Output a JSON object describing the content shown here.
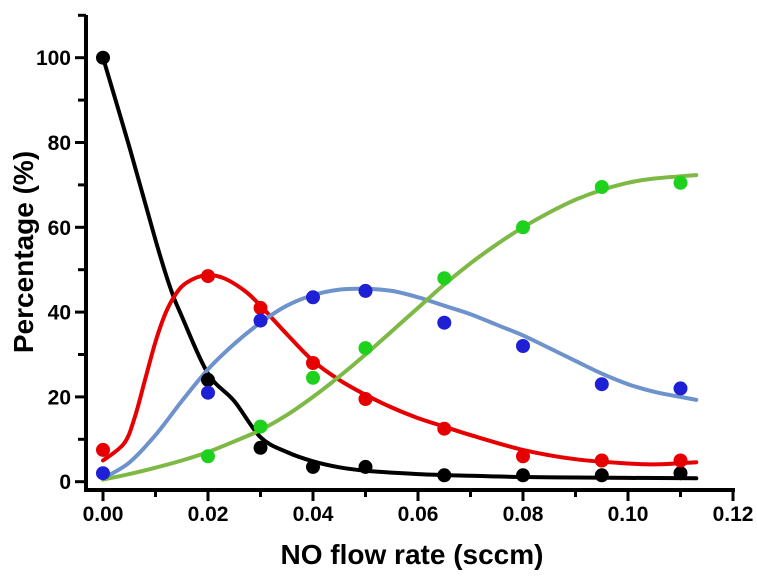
{
  "figure": {
    "background": "#ffffff",
    "axis_color": "#000000"
  },
  "chart_data": {
    "type": "scatter",
    "title": "",
    "xlabel": "NO flow rate (sccm)",
    "ylabel": "Percentage (%)",
    "xlim": [
      -0.0035,
      0.1225
    ],
    "ylim": [
      -2,
      110
    ],
    "grid": false,
    "legend_position": "none",
    "x_axis": {
      "ticks_major": [
        0,
        0.02,
        0.04,
        0.06,
        0.08,
        0.1,
        0.12
      ],
      "tick_labels": [
        "0.00",
        "0.02",
        "0.04",
        "0.06",
        "0.08",
        "0.10",
        "0.12"
      ],
      "ticks_minor": [
        0.01,
        0.03,
        0.05,
        0.07,
        0.09,
        0.11
      ]
    },
    "y_axis": {
      "ticks_major": [
        0,
        20,
        40,
        60,
        80,
        100
      ],
      "tick_labels": [
        "0",
        "20",
        "40",
        "60",
        "80",
        "100"
      ],
      "ticks_minor": [
        10,
        30,
        50,
        70,
        90,
        110
      ]
    },
    "series": [
      {
        "name": "black-series",
        "marker_color": "#000000",
        "line_color": "#000000",
        "points": [
          [
            0,
            100
          ],
          [
            0.02,
            24
          ],
          [
            0.03,
            8
          ],
          [
            0.04,
            3.5
          ],
          [
            0.05,
            3.5
          ],
          [
            0.065,
            1.5
          ],
          [
            0.08,
            1.5
          ],
          [
            0.095,
            1.5
          ],
          [
            0.11,
            2
          ]
        ],
        "fit_curve": [
          [
            0,
            100
          ],
          [
            0.005,
            79
          ],
          [
            0.01,
            57
          ],
          [
            0.0128,
            45.8
          ],
          [
            0.015,
            39
          ],
          [
            0.02,
            25.5
          ],
          [
            0.025,
            19
          ],
          [
            0.03,
            10.5
          ],
          [
            0.035,
            7
          ],
          [
            0.04,
            4.8
          ],
          [
            0.045,
            3.4
          ],
          [
            0.05,
            2.6
          ],
          [
            0.06,
            1.8
          ],
          [
            0.07,
            1.4
          ],
          [
            0.08,
            1.1
          ],
          [
            0.09,
            1.0
          ],
          [
            0.1,
            0.9
          ],
          [
            0.113,
            0.8
          ]
        ]
      },
      {
        "name": "red-series",
        "marker_color": "#e60000",
        "line_color": "#e60000",
        "points": [
          [
            0,
            7.5
          ],
          [
            0.02,
            48.5
          ],
          [
            0.03,
            41
          ],
          [
            0.04,
            28
          ],
          [
            0.05,
            19.5
          ],
          [
            0.065,
            12.5
          ],
          [
            0.08,
            6
          ],
          [
            0.095,
            5
          ],
          [
            0.11,
            5
          ]
        ],
        "fit_curve": [
          [
            0,
            5
          ],
          [
            0.004,
            9
          ],
          [
            0.006,
            15
          ],
          [
            0.008,
            24
          ],
          [
            0.01,
            33
          ],
          [
            0.012,
            40
          ],
          [
            0.014,
            44.5
          ],
          [
            0.016,
            47
          ],
          [
            0.0195,
            48.7
          ],
          [
            0.023,
            48
          ],
          [
            0.027,
            45
          ],
          [
            0.03,
            41.5
          ],
          [
            0.035,
            34.8
          ],
          [
            0.04,
            28.5
          ],
          [
            0.045,
            24
          ],
          [
            0.05,
            20.5
          ],
          [
            0.055,
            17.5
          ],
          [
            0.06,
            15
          ],
          [
            0.065,
            13
          ],
          [
            0.07,
            11
          ],
          [
            0.08,
            7.5
          ],
          [
            0.09,
            5.3
          ],
          [
            0.1,
            4.3
          ],
          [
            0.106,
            4.1
          ],
          [
            0.113,
            4.6
          ]
        ]
      },
      {
        "name": "blue-series",
        "marker_color": "#1f1fd6",
        "line_color": "#6d92cc",
        "points": [
          [
            0,
            2
          ],
          [
            0.02,
            21
          ],
          [
            0.03,
            38
          ],
          [
            0.04,
            43.5
          ],
          [
            0.05,
            45
          ],
          [
            0.065,
            37.5
          ],
          [
            0.08,
            32
          ],
          [
            0.095,
            23
          ],
          [
            0.11,
            22
          ]
        ],
        "fit_curve": [
          [
            0,
            0.8
          ],
          [
            0.005,
            4.5
          ],
          [
            0.01,
            11
          ],
          [
            0.015,
            19
          ],
          [
            0.02,
            26.5
          ],
          [
            0.025,
            32.5
          ],
          [
            0.03,
            37.5
          ],
          [
            0.035,
            41.5
          ],
          [
            0.04,
            44
          ],
          [
            0.045,
            45.3
          ],
          [
            0.05,
            45.5
          ],
          [
            0.055,
            45
          ],
          [
            0.06,
            43.5
          ],
          [
            0.065,
            41.5
          ],
          [
            0.07,
            39.5
          ],
          [
            0.075,
            37
          ],
          [
            0.08,
            34.5
          ],
          [
            0.085,
            31.5
          ],
          [
            0.09,
            28.5
          ],
          [
            0.095,
            25.5
          ],
          [
            0.1,
            23
          ],
          [
            0.105,
            21.2
          ],
          [
            0.11,
            20
          ],
          [
            0.113,
            19.3
          ]
        ]
      },
      {
        "name": "green-series",
        "marker_color": "#1dd11d",
        "line_color": "#7db944",
        "points": [
          [
            0.02,
            6
          ],
          [
            0.03,
            13
          ],
          [
            0.04,
            24.5
          ],
          [
            0.05,
            31.5
          ],
          [
            0.065,
            48
          ],
          [
            0.08,
            60
          ],
          [
            0.095,
            69.5
          ],
          [
            0.11,
            70.5
          ]
        ],
        "fit_curve": [
          [
            0,
            0.5
          ],
          [
            0.005,
            1.8
          ],
          [
            0.01,
            3.3
          ],
          [
            0.015,
            5
          ],
          [
            0.02,
            7
          ],
          [
            0.025,
            9.5
          ],
          [
            0.03,
            12.2
          ],
          [
            0.035,
            15.7
          ],
          [
            0.04,
            20
          ],
          [
            0.045,
            24.8
          ],
          [
            0.05,
            30
          ],
          [
            0.055,
            35.5
          ],
          [
            0.06,
            41
          ],
          [
            0.065,
            46.5
          ],
          [
            0.07,
            51.5
          ],
          [
            0.075,
            56
          ],
          [
            0.08,
            60
          ],
          [
            0.085,
            63.5
          ],
          [
            0.09,
            66.5
          ],
          [
            0.095,
            68.8
          ],
          [
            0.1,
            70.5
          ],
          [
            0.105,
            71.5
          ],
          [
            0.113,
            72.3
          ]
        ]
      }
    ]
  }
}
